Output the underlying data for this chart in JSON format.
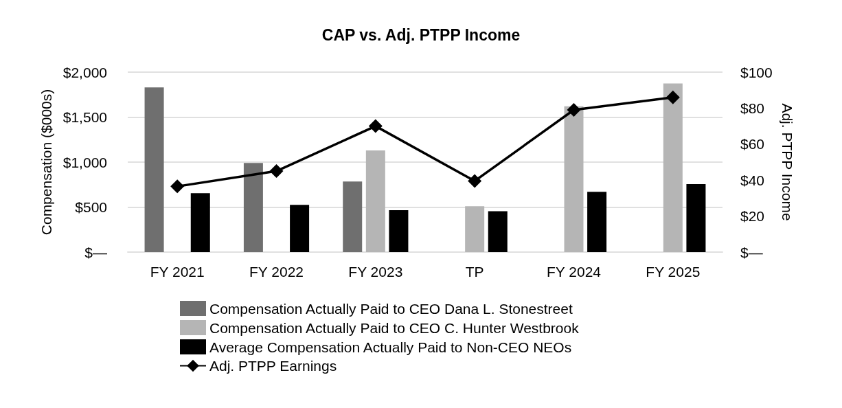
{
  "chart_data": {
    "type": "bar",
    "title": "CAP vs. Adj. PTPP Income",
    "ylabel": "Compensation ($000s)",
    "y2label": "Adj. PTPP Income",
    "categories": [
      "FY 2021",
      "FY 2022",
      "FY 2023",
      "TP",
      "FY 2024",
      "FY 2025"
    ],
    "series": [
      {
        "name": "Compensation Actually Paid to CEO Dana L. Stonestreet",
        "color": "#6f6f6f",
        "values": [
          1830,
          990,
          785,
          null,
          null,
          null
        ]
      },
      {
        "name": "Compensation Actually Paid to CEO C. Hunter Westbrook",
        "color": "#b5b5b5",
        "values": [
          null,
          null,
          1130,
          510,
          1620,
          1875
        ]
      },
      {
        "name": "Average Compensation Actually Paid to Non-CEO NEOs",
        "color": "#000000",
        "values": [
          655,
          525,
          465,
          455,
          670,
          755
        ]
      },
      {
        "name": "Adj. PTPP Earnings",
        "type": "line",
        "axis": "y2",
        "color": "#000000",
        "marker": "diamond",
        "values": [
          36.5,
          45,
          70,
          39.5,
          79,
          86
        ]
      }
    ],
    "ylim": [
      0,
      2000
    ],
    "yticks": [
      {
        "value": 0,
        "label": "$—"
      },
      {
        "value": 500,
        "label": "$500"
      },
      {
        "value": 1000,
        "label": "$1,000"
      },
      {
        "value": 1500,
        "label": "$1,500"
      },
      {
        "value": 2000,
        "label": "$2,000"
      }
    ],
    "y2lim": [
      0,
      100
    ],
    "y2ticks": [
      {
        "value": 0,
        "label": "$—"
      },
      {
        "value": 20,
        "label": "$20"
      },
      {
        "value": 40,
        "label": "$40"
      },
      {
        "value": 60,
        "label": "$60"
      },
      {
        "value": 80,
        "label": "$80"
      },
      {
        "value": 100,
        "label": "$100"
      }
    ],
    "grid": "y",
    "legend": "bottom"
  }
}
